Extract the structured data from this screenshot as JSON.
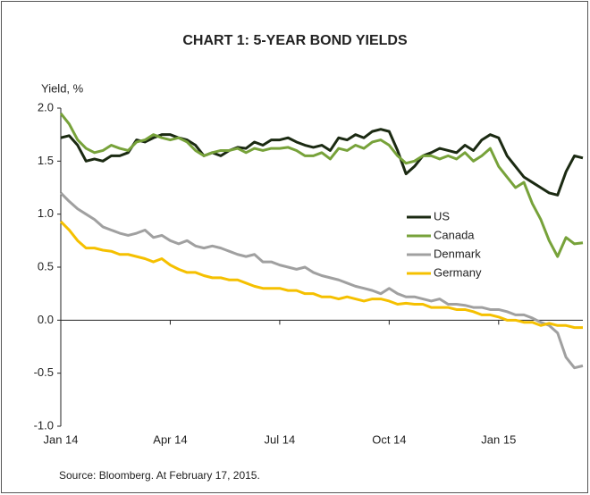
{
  "chart_data": {
    "type": "line",
    "title": "CHART 1: 5-YEAR BOND YIELDS",
    "y_label": "Yield, %",
    "source": "Source: Bloomberg. At February 17, 2015.",
    "categories": [
      "Jan 14",
      null,
      null,
      null,
      null,
      null,
      null,
      null,
      null,
      null,
      null,
      null,
      null,
      "Apr 14",
      null,
      null,
      null,
      null,
      null,
      null,
      null,
      null,
      null,
      null,
      null,
      null,
      "Jul 14",
      null,
      null,
      null,
      null,
      null,
      null,
      null,
      null,
      null,
      null,
      null,
      null,
      "Oct 14",
      null,
      null,
      null,
      null,
      null,
      null,
      null,
      null,
      null,
      null,
      null,
      null,
      "Jan 15",
      null,
      null,
      null,
      null,
      null,
      null,
      null,
      null,
      null,
      null
    ],
    "ylim": [
      -1,
      2
    ],
    "yticks": [
      {
        "value": 2,
        "label": "2.0"
      },
      1.5,
      {
        "value": 1,
        "label": "1.0"
      },
      0.5,
      {
        "value": 0,
        "label": "0.0"
      },
      -0.5,
      {
        "value": -1,
        "label": "-1.0"
      }
    ],
    "legend": "right",
    "series": [
      {
        "name": "US",
        "color": "#1b2a12",
        "values": [
          1.72,
          1.74,
          1.65,
          1.5,
          1.52,
          1.5,
          1.55,
          1.55,
          1.58,
          1.7,
          1.68,
          1.72,
          1.75,
          1.75,
          1.72,
          1.7,
          1.65,
          1.55,
          1.58,
          1.55,
          1.6,
          1.63,
          1.62,
          1.68,
          1.65,
          1.7,
          1.7,
          1.72,
          1.68,
          1.65,
          1.63,
          1.65,
          1.6,
          1.72,
          1.7,
          1.75,
          1.72,
          1.78,
          1.8,
          1.78,
          1.6,
          1.38,
          1.45,
          1.55,
          1.58,
          1.62,
          1.6,
          1.58,
          1.65,
          1.6,
          1.7,
          1.75,
          1.72,
          1.55,
          1.45,
          1.35,
          1.3,
          1.25,
          1.2,
          1.18,
          1.4,
          1.55,
          1.53
        ]
      },
      {
        "name": "Canada",
        "color": "#77a23a",
        "values": [
          1.95,
          1.85,
          1.7,
          1.62,
          1.58,
          1.6,
          1.65,
          1.62,
          1.6,
          1.68,
          1.7,
          1.75,
          1.72,
          1.7,
          1.72,
          1.68,
          1.6,
          1.55,
          1.58,
          1.6,
          1.6,
          1.62,
          1.58,
          1.62,
          1.6,
          1.62,
          1.62,
          1.63,
          1.6,
          1.55,
          1.55,
          1.58,
          1.52,
          1.62,
          1.6,
          1.65,
          1.62,
          1.68,
          1.7,
          1.65,
          1.55,
          1.48,
          1.5,
          1.55,
          1.55,
          1.52,
          1.55,
          1.52,
          1.58,
          1.5,
          1.55,
          1.62,
          1.45,
          1.35,
          1.25,
          1.3,
          1.1,
          0.95,
          0.75,
          0.6,
          0.78,
          0.72,
          0.73
        ]
      },
      {
        "name": "Denmark",
        "color": "#a0a0a0",
        "values": [
          1.2,
          1.12,
          1.05,
          1.0,
          0.95,
          0.88,
          0.85,
          0.82,
          0.8,
          0.82,
          0.85,
          0.78,
          0.8,
          0.75,
          0.72,
          0.75,
          0.7,
          0.68,
          0.7,
          0.68,
          0.65,
          0.62,
          0.6,
          0.62,
          0.55,
          0.55,
          0.52,
          0.5,
          0.48,
          0.5,
          0.45,
          0.42,
          0.4,
          0.38,
          0.35,
          0.32,
          0.3,
          0.28,
          0.25,
          0.3,
          0.25,
          0.22,
          0.22,
          0.2,
          0.18,
          0.2,
          0.15,
          0.15,
          0.14,
          0.12,
          0.12,
          0.1,
          0.1,
          0.08,
          0.05,
          0.05,
          0.02,
          -0.02,
          -0.05,
          -0.12,
          -0.35,
          -0.45,
          -0.43
        ]
      },
      {
        "name": "Germany",
        "color": "#f5c000",
        "values": [
          0.93,
          0.85,
          0.75,
          0.68,
          0.68,
          0.66,
          0.65,
          0.62,
          0.62,
          0.6,
          0.58,
          0.55,
          0.58,
          0.52,
          0.48,
          0.45,
          0.45,
          0.42,
          0.4,
          0.4,
          0.38,
          0.38,
          0.35,
          0.32,
          0.3,
          0.3,
          0.3,
          0.28,
          0.28,
          0.25,
          0.25,
          0.22,
          0.22,
          0.2,
          0.22,
          0.2,
          0.18,
          0.2,
          0.2,
          0.18,
          0.15,
          0.16,
          0.15,
          0.15,
          0.12,
          0.12,
          0.12,
          0.1,
          0.1,
          0.08,
          0.05,
          0.05,
          0.03,
          0.0,
          0.0,
          -0.02,
          -0.02,
          -0.05,
          -0.03,
          -0.05,
          -0.05,
          -0.07,
          -0.07
        ]
      }
    ]
  }
}
